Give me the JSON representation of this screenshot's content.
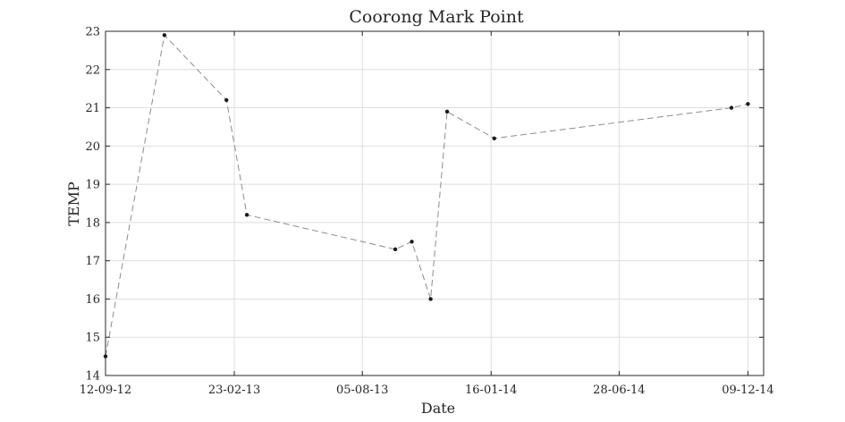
{
  "chart_data": {
    "type": "line",
    "title": "Coorong Mark Point",
    "xlabel": "Date",
    "ylabel": "TEMP",
    "x_is_date": true,
    "date_format": "DD-MM-YY",
    "xlim": [
      "2012-09-12",
      "2014-12-29"
    ],
    "ylim": [
      14,
      23
    ],
    "x_ticks": [
      "2012-09-12",
      "2013-02-23",
      "2013-08-05",
      "2014-01-16",
      "2014-06-28",
      "2014-12-09"
    ],
    "x_tick_labels": [
      "12-09-12",
      "23-02-13",
      "05-08-13",
      "16-01-14",
      "28-06-14",
      "09-12-14"
    ],
    "y_ticks": [
      14,
      15,
      16,
      17,
      18,
      19,
      20,
      21,
      22,
      23
    ],
    "grid": true,
    "series": [
      {
        "line_style": "dashed",
        "line_color": "#8c8c8c",
        "marker_color": "#1a1a1a",
        "points": [
          {
            "x": "2012-09-12",
            "y": 14.5
          },
          {
            "x": "2012-11-26",
            "y": 22.9
          },
          {
            "x": "2013-02-13",
            "y": 21.2
          },
          {
            "x": "2013-03-11",
            "y": 18.2
          },
          {
            "x": "2013-09-16",
            "y": 17.3
          },
          {
            "x": "2013-10-07",
            "y": 17.5
          },
          {
            "x": "2013-10-31",
            "y": 16.0
          },
          {
            "x": "2013-11-21",
            "y": 20.9
          },
          {
            "x": "2014-01-20",
            "y": 20.2
          },
          {
            "x": "2014-11-18",
            "y": 21.0
          },
          {
            "x": "2014-12-09",
            "y": 21.1
          }
        ]
      }
    ]
  }
}
